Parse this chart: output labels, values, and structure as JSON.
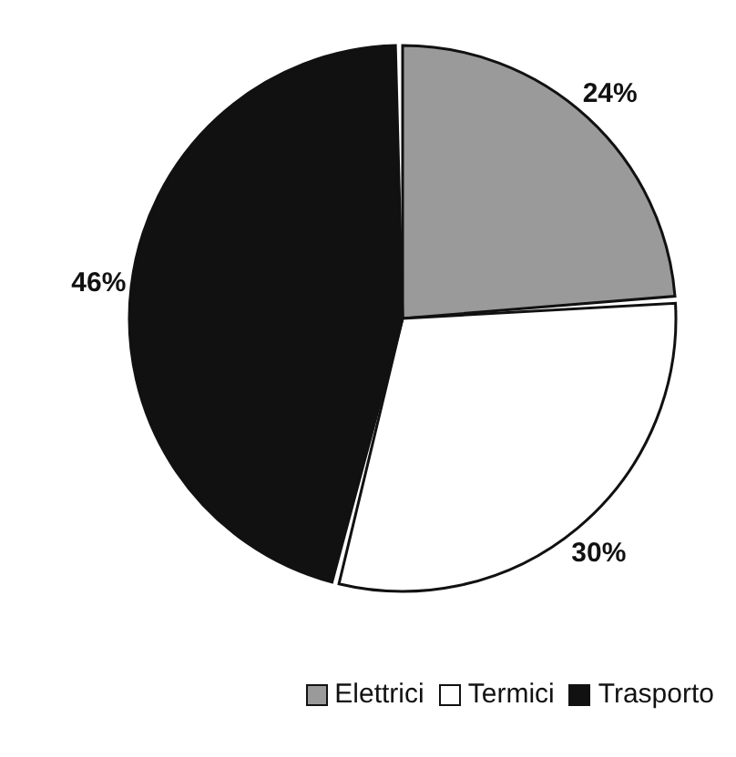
{
  "chart_data": {
    "type": "pie",
    "categories": [
      "Elettrici",
      "Termici",
      "Trasporto"
    ],
    "values": [
      24,
      30,
      46
    ],
    "colors": [
      "#9a9a9a",
      "#ffffff",
      "#111111"
    ],
    "value_labels": [
      "24%",
      "30%",
      "46%"
    ],
    "legend": "bottom right"
  }
}
